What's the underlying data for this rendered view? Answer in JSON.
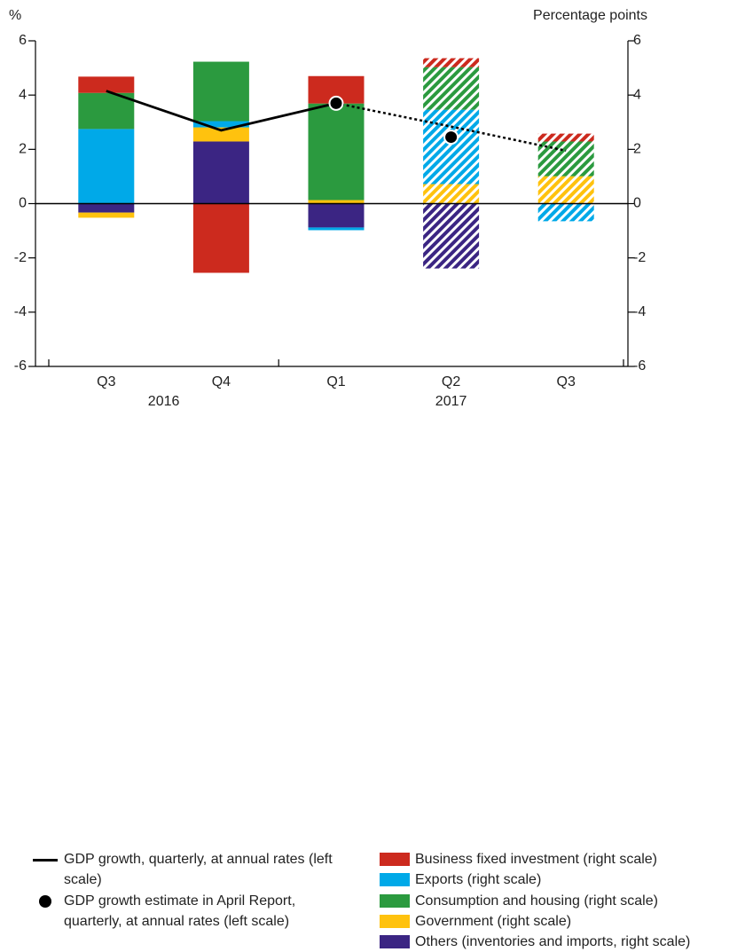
{
  "chart_data": {
    "type": "stacked-bar-line",
    "y_label": "%",
    "y2_label": "Percentage points",
    "categories": [
      "Q3",
      "Q4",
      "Q1",
      "Q2",
      "Q3"
    ],
    "year_groups": [
      {
        "label": "2016",
        "start": 0,
        "end": 1
      },
      {
        "label": "2017",
        "start": 2,
        "end": 4
      }
    ],
    "hatched_from": 3,
    "ylim": [
      -6,
      6
    ],
    "yticks": [
      -6,
      -4,
      -2,
      0,
      2,
      4,
      6
    ],
    "y2lim": [
      -6,
      6
    ],
    "y2ticks": [
      -6,
      -4,
      -2,
      0,
      2,
      4,
      6
    ],
    "series": [
      {
        "name": "Others (inventories and imports, right scale)",
        "color": "#3b2583",
        "axis": "y2",
        "values": [
          -0.33,
          2.29,
          -0.88,
          -2.39,
          0
        ]
      },
      {
        "name": "Government (right scale)",
        "color": "#ffc20e",
        "axis": "y2",
        "values": [
          -0.19,
          0.52,
          0.13,
          0.72,
          1.01
        ]
      },
      {
        "name": "Exports (right scale)",
        "color": "#00a9e8",
        "axis": "y2",
        "values": [
          2.75,
          0.23,
          -0.1,
          2.74,
          -0.65
        ]
      },
      {
        "name": "Consumption and housing (right scale)",
        "color": "#2b9a3f",
        "axis": "y2",
        "values": [
          1.33,
          2.19,
          3.56,
          1.57,
          1.28
        ]
      },
      {
        "name": "Business fixed investment (right scale)",
        "color": "#cc2a1e",
        "axis": "y2",
        "values": [
          0.6,
          -2.55,
          1.01,
          0.33,
          0.29
        ]
      }
    ],
    "line": {
      "name": "GDP growth, quarterly, at annual rates (left scale)",
      "color": "#000000",
      "dashed_from": 2,
      "values": [
        4.15,
        2.7,
        3.7,
        2.84,
        1.95
      ]
    },
    "points": {
      "name": "GDP growth estimate in April Report, quarterly, at annual rates (left scale)",
      "color": "#000000",
      "values": [
        null,
        null,
        3.7,
        2.45,
        null
      ]
    }
  }
}
